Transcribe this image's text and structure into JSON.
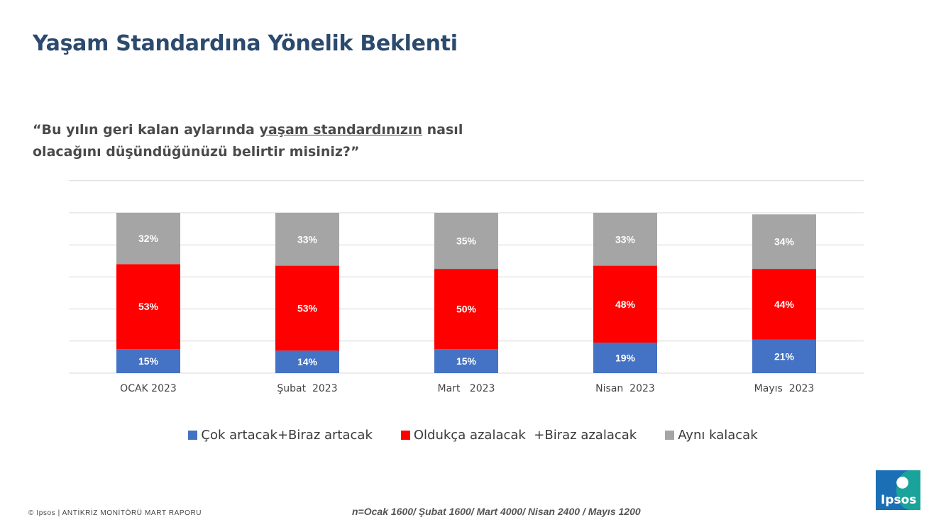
{
  "header": {
    "title": "Yaşam Standardına Yönelik Beklenti",
    "question_pre": "“Bu yılın geri kalan aylarında ",
    "question_underlined": "yaşam standardınızın",
    "question_post": " nasıl olacağını düşündüğünüzü belirtir misiniz?”"
  },
  "chart_data": {
    "type": "bar",
    "stacked": true,
    "categories": [
      "OCAK 2023",
      "Şubat  2023",
      "Mart   2023",
      "Nisan  2023",
      "Mayıs  2023"
    ],
    "series": [
      {
        "name": "Çok artacak+Biraz artacak",
        "color": "#4472c4",
        "values": [
          15,
          14,
          15,
          19,
          21
        ]
      },
      {
        "name": "Oldukça azalacak  +Biraz azalacak",
        "color": "#ff0000",
        "values": [
          53,
          53,
          50,
          48,
          44
        ]
      },
      {
        "name": "Aynı kalacak",
        "color": "#a5a5a5",
        "values": [
          32,
          33,
          35,
          33,
          34
        ]
      }
    ],
    "value_suffix": "%",
    "ylim": [
      0,
      100
    ],
    "grid": true,
    "legend_position": "bottom"
  },
  "footer": {
    "copyright": "© Ipsos | ANTİKRİZ MONİTÖRÜ MART  RAPORU",
    "sample_note": "n=Ocak 1600/ Şubat 1600/ Mart 4000/ Nisan 2400 / Mayıs 1200"
  },
  "logo": {
    "text": "Ipsos"
  }
}
